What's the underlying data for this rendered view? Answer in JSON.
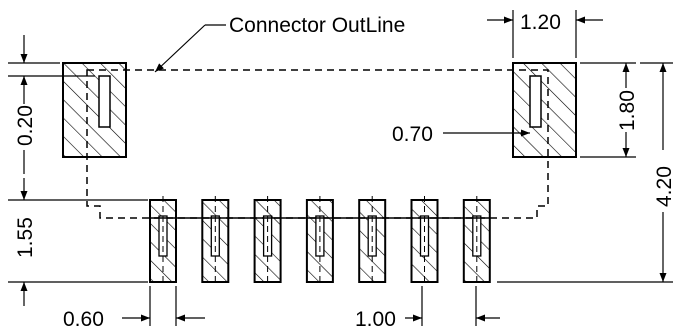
{
  "diagram": {
    "callout_label": "Connector OutLine",
    "pads": {
      "signal_count": 7,
      "mount_count": 2
    },
    "dimensions": {
      "mount_pad_width": "1.20",
      "mount_pad_height": "1.80",
      "overall_height": "4.20",
      "pad_offset_left": "0.20",
      "mount_pad_slot_width": "0.70",
      "signal_pad_offset": "1.55",
      "signal_pad_width": "0.60",
      "pitch": "1.00"
    }
  }
}
